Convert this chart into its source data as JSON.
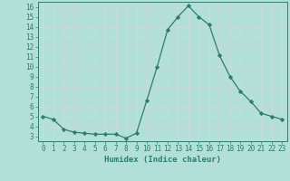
{
  "x": [
    0,
    1,
    2,
    3,
    4,
    5,
    6,
    7,
    8,
    9,
    10,
    11,
    12,
    13,
    14,
    15,
    16,
    17,
    18,
    19,
    20,
    21,
    22,
    23
  ],
  "y": [
    5.0,
    4.7,
    3.7,
    3.4,
    3.3,
    3.2,
    3.2,
    3.2,
    2.8,
    3.3,
    6.6,
    10.0,
    13.7,
    15.0,
    16.1,
    15.0,
    14.2,
    11.1,
    9.0,
    7.5,
    6.5,
    5.3,
    5.0,
    4.7
  ],
  "line_color": "#2d7d6f",
  "marker": "D",
  "marker_size": 2.2,
  "bg_color": "#b2e0d8",
  "grid_color": "#d0ece8",
  "xlabel": "Humidex (Indice chaleur)",
  "xlim": [
    -0.5,
    23.5
  ],
  "ylim": [
    2.5,
    16.5
  ],
  "yticks": [
    3,
    4,
    5,
    6,
    7,
    8,
    9,
    10,
    11,
    12,
    13,
    14,
    15,
    16
  ],
  "xticks": [
    0,
    1,
    2,
    3,
    4,
    5,
    6,
    7,
    8,
    9,
    10,
    11,
    12,
    13,
    14,
    15,
    16,
    17,
    18,
    19,
    20,
    21,
    22,
    23
  ],
  "tick_color": "#2d7d6f",
  "label_color": "#2d7d6f",
  "font_size": 5.5,
  "xlabel_font_size": 6.5,
  "line_width": 0.9
}
